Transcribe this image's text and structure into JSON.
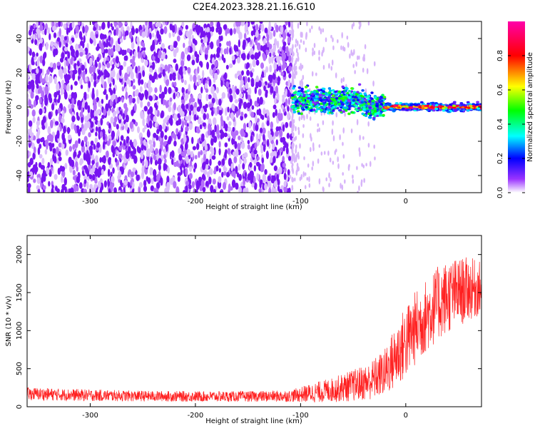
{
  "title": "C2E4.2023.328.21.16.G10",
  "chart_data": [
    {
      "type": "heatmap",
      "xlabel": "Height of straight line (km)",
      "ylabel": "Frequency (Hz)",
      "xlim": [
        -360,
        72
      ],
      "ylim": [
        -50,
        50
      ],
      "xticks": [
        -300,
        -200,
        -100,
        0
      ],
      "yticks": [
        -40,
        -20,
        0,
        20,
        40
      ],
      "colorbar": {
        "label": "Normalized spectral amplitude",
        "range": [
          0,
          1
        ],
        "ticks": [
          "0.0",
          "0.2",
          "0.4",
          "0.6",
          "0.8"
        ],
        "tick_values": [
          0.0,
          0.2,
          0.4,
          0.6,
          0.8
        ],
        "colors": [
          "#ffffff",
          "#8800ff",
          "#0000ff",
          "#00ffff",
          "#00ff00",
          "#ffff00",
          "#ff0000",
          "#ff00aa"
        ]
      },
      "regions": [
        {
          "x_from": -360,
          "x_to": -108,
          "freq_band": [
            -50,
            50
          ],
          "amplitude": 0.05,
          "description_color": "purple"
        },
        {
          "x_from": -108,
          "x_to": -20,
          "freq_center": 2,
          "freq_halfwidth": 6,
          "amplitude": 0.4
        },
        {
          "x_from": -20,
          "x_to": 72,
          "freq_center": 0,
          "freq_halfwidth": 2,
          "amplitude": 0.9
        }
      ],
      "grid": false
    },
    {
      "type": "line",
      "xlabel": "Height of straight line (km)",
      "ylabel": "SNR (10 * v/v)",
      "xlim": [
        -360,
        72
      ],
      "ylim": [
        0,
        2250
      ],
      "xticks": [
        -300,
        -200,
        -100,
        0
      ],
      "yticks": [
        0,
        500,
        1000,
        1500,
        2000
      ],
      "color": "#ff2020",
      "envelope": {
        "x": [
          -360,
          -300,
          -250,
          -200,
          -150,
          -110,
          -90,
          -70,
          -50,
          -35,
          -20,
          -10,
          0,
          10,
          20,
          30,
          40,
          50,
          60,
          72
        ],
        "mean": [
          170,
          150,
          140,
          135,
          135,
          140,
          180,
          220,
          280,
          330,
          450,
          650,
          850,
          1050,
          1200,
          1350,
          1450,
          1500,
          1550,
          1550
        ],
        "spread": [
          120,
          110,
          100,
          100,
          100,
          110,
          180,
          230,
          300,
          350,
          450,
          600,
          700,
          700,
          700,
          700,
          700,
          650,
          600,
          500
        ]
      },
      "grid": false
    }
  ]
}
